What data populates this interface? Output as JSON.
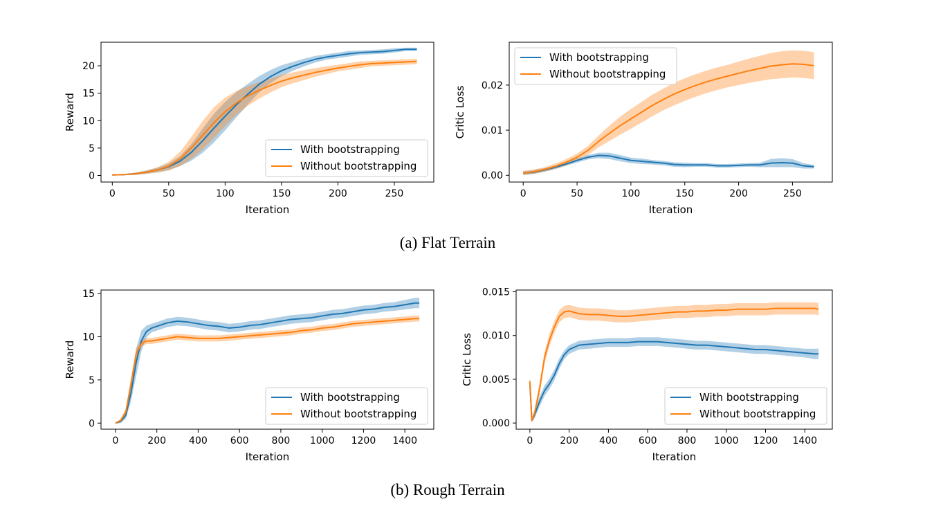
{
  "captions": {
    "a": "(a) Flat Terrain",
    "b": "(b) Rough Terrain"
  },
  "colors": {
    "with": "#1f77b4",
    "without": "#ff7f0e"
  },
  "chart_data": [
    {
      "type": "line",
      "xlabel": "Iteration",
      "ylabel": "Reward",
      "xlim": [
        -10,
        285
      ],
      "ylim": [
        -1.2,
        24.3
      ],
      "xticks": [
        0,
        50,
        100,
        150,
        200,
        250
      ],
      "yticks": [
        0,
        5,
        10,
        15,
        20
      ],
      "tick_labels_x": [
        "0",
        "50",
        "100",
        "150",
        "200",
        "250"
      ],
      "tick_labels_y": [
        "0",
        "5",
        "10",
        "15",
        "20"
      ],
      "legend_loc": "lower-right",
      "series": [
        {
          "name": "With bootstrapping",
          "x": [
            0,
            10,
            20,
            30,
            40,
            50,
            60,
            70,
            80,
            90,
            100,
            110,
            120,
            130,
            140,
            150,
            160,
            170,
            180,
            190,
            200,
            210,
            220,
            230,
            240,
            250,
            260,
            270
          ],
          "y": [
            0.1,
            0.15,
            0.3,
            0.6,
            1.0,
            1.6,
            2.6,
            4.2,
            6.3,
            8.6,
            10.8,
            12.9,
            14.8,
            16.6,
            18.0,
            19.1,
            19.9,
            20.6,
            21.2,
            21.6,
            21.9,
            22.2,
            22.4,
            22.5,
            22.6,
            22.8,
            23.0,
            23.0
          ],
          "band": [
            0.1,
            0.1,
            0.2,
            0.3,
            0.4,
            0.6,
            0.9,
            1.5,
            2.2,
            2.6,
            2.6,
            2.3,
            1.9,
            1.5,
            1.2,
            1.0,
            0.8,
            0.7,
            0.6,
            0.5,
            0.5,
            0.5,
            0.4,
            0.4,
            0.4,
            0.4,
            0.3,
            0.3
          ]
        },
        {
          "name": "Without bootstrapping",
          "x": [
            0,
            10,
            20,
            30,
            40,
            50,
            60,
            70,
            80,
            90,
            100,
            110,
            120,
            130,
            140,
            150,
            160,
            170,
            180,
            190,
            200,
            210,
            220,
            230,
            240,
            250,
            260,
            270
          ],
          "y": [
            0.1,
            0.15,
            0.3,
            0.6,
            1.0,
            1.7,
            3.0,
            5.0,
            7.3,
            9.6,
            11.6,
            13.2,
            14.5,
            15.5,
            16.4,
            17.2,
            17.8,
            18.3,
            18.8,
            19.2,
            19.6,
            19.9,
            20.2,
            20.4,
            20.5,
            20.6,
            20.7,
            20.8
          ],
          "band": [
            0.1,
            0.1,
            0.2,
            0.3,
            0.5,
            0.8,
            1.3,
            2.0,
            2.6,
            2.8,
            2.6,
            2.2,
            1.8,
            1.5,
            1.3,
            1.1,
            1.0,
            0.9,
            0.8,
            0.7,
            0.6,
            0.6,
            0.6,
            0.5,
            0.5,
            0.5,
            0.5,
            0.5
          ]
        }
      ]
    },
    {
      "type": "line",
      "xlabel": "Iteration",
      "ylabel": "Critic Loss",
      "xlim": [
        -13,
        287
      ],
      "ylim": [
        -0.0015,
        0.0295
      ],
      "xticks": [
        0,
        50,
        100,
        150,
        200,
        250
      ],
      "yticks": [
        0,
        0.01,
        0.02
      ],
      "tick_labels_x": [
        "0",
        "50",
        "100",
        "150",
        "200",
        "250"
      ],
      "tick_labels_y": [
        "0.00",
        "0.01",
        "0.02"
      ],
      "legend_loc": "upper-left",
      "series": [
        {
          "name": "With bootstrapping",
          "x": [
            0,
            10,
            20,
            30,
            40,
            50,
            60,
            70,
            80,
            90,
            100,
            110,
            120,
            130,
            140,
            150,
            160,
            170,
            180,
            190,
            200,
            210,
            220,
            230,
            240,
            250,
            260,
            270
          ],
          "y": [
            0.0005,
            0.0007,
            0.0012,
            0.0018,
            0.0025,
            0.0033,
            0.004,
            0.0044,
            0.0043,
            0.0038,
            0.0033,
            0.0031,
            0.0029,
            0.0027,
            0.0024,
            0.0023,
            0.0023,
            0.0023,
            0.0021,
            0.0021,
            0.0022,
            0.0023,
            0.0023,
            0.0027,
            0.0028,
            0.0027,
            0.0021,
            0.0019
          ],
          "band": [
            0.0004,
            0.0004,
            0.0004,
            0.0004,
            0.0004,
            0.0005,
            0.0005,
            0.0006,
            0.0007,
            0.0007,
            0.0006,
            0.0006,
            0.0005,
            0.0005,
            0.0005,
            0.0005,
            0.0004,
            0.0004,
            0.0004,
            0.0004,
            0.0004,
            0.0004,
            0.0005,
            0.0009,
            0.001,
            0.0009,
            0.0006,
            0.0004
          ]
        },
        {
          "name": "Without bootstrapping",
          "x": [
            0,
            10,
            20,
            30,
            40,
            50,
            60,
            70,
            80,
            90,
            100,
            110,
            120,
            130,
            140,
            150,
            160,
            170,
            180,
            190,
            200,
            210,
            220,
            230,
            240,
            250,
            260,
            270
          ],
          "y": [
            0.0005,
            0.0008,
            0.0013,
            0.002,
            0.0029,
            0.004,
            0.0055,
            0.0075,
            0.0093,
            0.011,
            0.0125,
            0.014,
            0.0155,
            0.0168,
            0.018,
            0.019,
            0.0199,
            0.0207,
            0.0214,
            0.022,
            0.0226,
            0.0232,
            0.0237,
            0.0242,
            0.0245,
            0.0247,
            0.0246,
            0.0243
          ],
          "band": [
            0.0005,
            0.0005,
            0.0005,
            0.0006,
            0.0007,
            0.0008,
            0.001,
            0.0013,
            0.0017,
            0.002,
            0.0022,
            0.0023,
            0.0024,
            0.0024,
            0.0025,
            0.0025,
            0.0025,
            0.0025,
            0.0025,
            0.0025,
            0.0026,
            0.0027,
            0.0028,
            0.0029,
            0.003,
            0.003,
            0.003,
            0.003
          ]
        }
      ]
    },
    {
      "type": "line",
      "xlabel": "Iteration",
      "ylabel": "Reward",
      "xlim": [
        -70,
        1540
      ],
      "ylim": [
        -0.7,
        15.4
      ],
      "xticks": [
        0,
        200,
        400,
        600,
        800,
        1000,
        1200,
        1400
      ],
      "yticks": [
        0,
        5,
        10,
        15
      ],
      "tick_labels_x": [
        "0",
        "200",
        "400",
        "600",
        "800",
        "1000",
        "1200",
        "1400"
      ],
      "tick_labels_y": [
        "0",
        "5",
        "10",
        "15"
      ],
      "legend_loc": "lower-right",
      "series": [
        {
          "name": "With bootstrapping",
          "x": [
            0,
            25,
            50,
            75,
            100,
            125,
            150,
            175,
            200,
            250,
            300,
            350,
            400,
            450,
            500,
            550,
            600,
            650,
            700,
            750,
            800,
            850,
            900,
            950,
            1000,
            1050,
            1100,
            1150,
            1200,
            1250,
            1300,
            1350,
            1400,
            1450,
            1470
          ],
          "y": [
            0,
            0.2,
            0.9,
            3.5,
            7.0,
            9.5,
            10.6,
            11.0,
            11.2,
            11.6,
            11.8,
            11.7,
            11.5,
            11.3,
            11.2,
            11.0,
            11.1,
            11.3,
            11.4,
            11.6,
            11.8,
            12.0,
            12.1,
            12.2,
            12.4,
            12.6,
            12.7,
            12.9,
            13.1,
            13.2,
            13.4,
            13.5,
            13.7,
            13.9,
            13.9
          ],
          "band": [
            0.05,
            0.2,
            0.4,
            1.0,
            1.6,
            1.2,
            0.7,
            0.5,
            0.5,
            0.5,
            0.5,
            0.5,
            0.5,
            0.5,
            0.5,
            0.5,
            0.5,
            0.5,
            0.5,
            0.5,
            0.5,
            0.5,
            0.5,
            0.5,
            0.5,
            0.5,
            0.5,
            0.5,
            0.5,
            0.5,
            0.5,
            0.5,
            0.55,
            0.6,
            0.6
          ]
        },
        {
          "name": "Without bootstrapping",
          "x": [
            0,
            25,
            50,
            75,
            100,
            125,
            150,
            175,
            200,
            250,
            300,
            350,
            400,
            450,
            500,
            550,
            600,
            650,
            700,
            750,
            800,
            850,
            900,
            950,
            1000,
            1050,
            1100,
            1150,
            1200,
            1250,
            1300,
            1350,
            1400,
            1450,
            1470
          ],
          "y": [
            0,
            0.3,
            1.3,
            4.5,
            8.0,
            9.2,
            9.5,
            9.5,
            9.6,
            9.8,
            10.0,
            9.9,
            9.8,
            9.8,
            9.8,
            9.9,
            10.0,
            10.1,
            10.2,
            10.3,
            10.4,
            10.5,
            10.7,
            10.8,
            11.0,
            11.1,
            11.3,
            11.5,
            11.6,
            11.7,
            11.8,
            11.9,
            12.0,
            12.1,
            12.1
          ],
          "band": [
            0.05,
            0.2,
            0.4,
            0.7,
            0.7,
            0.4,
            0.35,
            0.35,
            0.35,
            0.35,
            0.35,
            0.35,
            0.35,
            0.35,
            0.35,
            0.35,
            0.35,
            0.35,
            0.35,
            0.35,
            0.35,
            0.35,
            0.35,
            0.35,
            0.35,
            0.35,
            0.35,
            0.35,
            0.35,
            0.35,
            0.35,
            0.35,
            0.35,
            0.35,
            0.35
          ]
        }
      ]
    },
    {
      "type": "line",
      "xlabel": "Iteration",
      "ylabel": "Critic Loss",
      "xlim": [
        -70,
        1540
      ],
      "ylim": [
        -0.0007,
        0.0152
      ],
      "xticks": [
        0,
        200,
        400,
        600,
        800,
        1000,
        1200,
        1400
      ],
      "yticks": [
        0,
        0.005,
        0.01,
        0.015
      ],
      "tick_labels_x": [
        "0",
        "200",
        "400",
        "600",
        "800",
        "1000",
        "1200",
        "1400"
      ],
      "tick_labels_y": [
        "0.000",
        "0.005",
        "0.010",
        "0.015"
      ],
      "legend_loc": "lower-right",
      "series": [
        {
          "name": "With bootstrapping",
          "x": [
            0,
            10,
            25,
            50,
            75,
            100,
            125,
            150,
            175,
            200,
            250,
            300,
            350,
            400,
            450,
            500,
            550,
            600,
            650,
            700,
            750,
            800,
            850,
            900,
            950,
            1000,
            1050,
            1100,
            1150,
            1200,
            1250,
            1300,
            1350,
            1400,
            1450,
            1470
          ],
          "y": [
            0.0046,
            0.0003,
            0.001,
            0.0025,
            0.0037,
            0.0045,
            0.0055,
            0.0068,
            0.0078,
            0.0084,
            0.0089,
            0.009,
            0.0091,
            0.0092,
            0.0092,
            0.0092,
            0.0093,
            0.0093,
            0.0093,
            0.0092,
            0.0091,
            0.009,
            0.0089,
            0.0089,
            0.0088,
            0.0087,
            0.0086,
            0.0085,
            0.0084,
            0.0084,
            0.0083,
            0.0082,
            0.0081,
            0.008,
            0.0079,
            0.0079
          ],
          "band": [
            0.0005,
            0.0002,
            0.0004,
            0.0006,
            0.0006,
            0.0006,
            0.0006,
            0.0006,
            0.0005,
            0.0005,
            0.0005,
            0.0005,
            0.0005,
            0.0005,
            0.0005,
            0.0005,
            0.0005,
            0.0005,
            0.0005,
            0.0005,
            0.0005,
            0.0005,
            0.0005,
            0.0005,
            0.0005,
            0.0005,
            0.0005,
            0.0005,
            0.0005,
            0.0005,
            0.0005,
            0.0005,
            0.0005,
            0.0005,
            0.0006,
            0.0006
          ]
        },
        {
          "name": "Without bootstrapping",
          "x": [
            0,
            10,
            25,
            50,
            75,
            100,
            125,
            150,
            175,
            200,
            250,
            300,
            350,
            400,
            450,
            500,
            550,
            600,
            650,
            700,
            750,
            800,
            850,
            900,
            950,
            1000,
            1050,
            1100,
            1150,
            1200,
            1250,
            1300,
            1350,
            1400,
            1450,
            1470
          ],
          "y": [
            0.0048,
            0.0003,
            0.0012,
            0.004,
            0.0075,
            0.0095,
            0.011,
            0.0122,
            0.0127,
            0.0128,
            0.0125,
            0.0124,
            0.0124,
            0.0123,
            0.0122,
            0.0122,
            0.0123,
            0.0124,
            0.0125,
            0.0126,
            0.0127,
            0.0127,
            0.0128,
            0.0128,
            0.0129,
            0.0129,
            0.013,
            0.013,
            0.013,
            0.013,
            0.0131,
            0.0131,
            0.0131,
            0.0131,
            0.0131,
            0.013
          ],
          "band": [
            0.0006,
            0.0002,
            0.0005,
            0.0007,
            0.0007,
            0.0007,
            0.0007,
            0.0007,
            0.0007,
            0.0007,
            0.0007,
            0.0007,
            0.0007,
            0.0007,
            0.0007,
            0.0007,
            0.0007,
            0.0007,
            0.0007,
            0.0007,
            0.0007,
            0.0007,
            0.0007,
            0.0007,
            0.0007,
            0.0007,
            0.0007,
            0.0007,
            0.0007,
            0.0007,
            0.0007,
            0.0007,
            0.0007,
            0.0007,
            0.0007,
            0.0007
          ]
        }
      ]
    }
  ]
}
